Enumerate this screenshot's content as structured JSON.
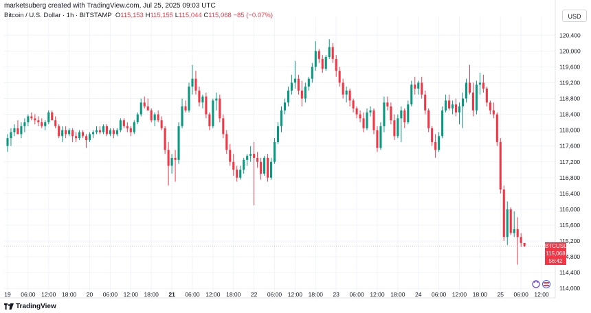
{
  "header": {
    "attribution": "marketsuberg created with TradingView.com, Jul 25, 2025 09:03 UTC",
    "symbol_title": "Bitcoin / U.S. Dollar · 1h · BITSTAMP",
    "ohlc": {
      "open_label": "O",
      "open": "115,153",
      "high_label": "H",
      "high": "115,155",
      "low_label": "L",
      "low": "115,044",
      "close_label": "C",
      "close": "115,068",
      "change": "−85 (−0.07%)"
    },
    "currency_button": "USD"
  },
  "footer": {
    "logo_text": "TradingView"
  },
  "colors": {
    "up": "#089981",
    "down": "#f23645",
    "grid": "#f0f3fa",
    "axis_text": "#131722"
  },
  "chart_data": {
    "type": "candlestick",
    "ylim": [
      113900,
      120700
    ],
    "y_ticks": [
      114000,
      114400,
      114800,
      115200,
      115600,
      116000,
      116400,
      116800,
      117200,
      117600,
      118000,
      118400,
      118800,
      119200,
      119600,
      120000,
      120400
    ],
    "y_tick_labels": [
      "114,000",
      "114,400",
      "114,800",
      "115,200",
      "115,600",
      "116,000",
      "116,400",
      "116,800",
      "117,200",
      "117,600",
      "118,000",
      "118,400",
      "118,800",
      "119,200",
      "119,600",
      "120,000",
      "120,400"
    ],
    "x_ticks": [
      {
        "label": "19",
        "hour": 0,
        "bold": false
      },
      {
        "label": "06:00",
        "hour": 6,
        "bold": false
      },
      {
        "label": "12:00",
        "hour": 12,
        "bold": false
      },
      {
        "label": "18:00",
        "hour": 18,
        "bold": false
      },
      {
        "label": "20",
        "hour": 24,
        "bold": false
      },
      {
        "label": "06:00",
        "hour": 30,
        "bold": false
      },
      {
        "label": "12:00",
        "hour": 36,
        "bold": false
      },
      {
        "label": "18:00",
        "hour": 42,
        "bold": false
      },
      {
        "label": "21",
        "hour": 48,
        "bold": true
      },
      {
        "label": "06:00",
        "hour": 54,
        "bold": false
      },
      {
        "label": "12:00",
        "hour": 60,
        "bold": false
      },
      {
        "label": "18:00",
        "hour": 66,
        "bold": false
      },
      {
        "label": "22",
        "hour": 72,
        "bold": false
      },
      {
        "label": "06:00",
        "hour": 78,
        "bold": false
      },
      {
        "label": "12:00",
        "hour": 84,
        "bold": false
      },
      {
        "label": "18:00",
        "hour": 90,
        "bold": false
      },
      {
        "label": "23",
        "hour": 96,
        "bold": false
      },
      {
        "label": "06:00",
        "hour": 102,
        "bold": false
      },
      {
        "label": "12:00",
        "hour": 108,
        "bold": false
      },
      {
        "label": "18:00",
        "hour": 114,
        "bold": false
      },
      {
        "label": "24",
        "hour": 120,
        "bold": false
      },
      {
        "label": "06:00",
        "hour": 126,
        "bold": false
      },
      {
        "label": "12:00",
        "hour": 132,
        "bold": false
      },
      {
        "label": "18:00",
        "hour": 138,
        "bold": false
      },
      {
        "label": "25",
        "hour": 144,
        "bold": false
      },
      {
        "label": "06:00",
        "hour": 150,
        "bold": false
      },
      {
        "label": "12:00",
        "hour": 156,
        "bold": false
      }
    ],
    "x_range_hours": [
      -1,
      160
    ],
    "last_price": 115068,
    "last_price_tag": {
      "symbol": "BTCUSD",
      "price": "115,068",
      "countdown": "56:42"
    },
    "ohlc": [
      [
        117600,
        117900,
        117450,
        117800
      ],
      [
        117800,
        118050,
        117600,
        117950
      ],
      [
        117950,
        118150,
        117850,
        118050
      ],
      [
        118050,
        118250,
        117900,
        117900
      ],
      [
        117900,
        118200,
        117800,
        118100
      ],
      [
        118100,
        118300,
        117950,
        118200
      ],
      [
        118200,
        118400,
        118100,
        118350
      ],
      [
        118350,
        118450,
        118250,
        118300
      ],
      [
        118300,
        118400,
        118150,
        118250
      ],
      [
        118250,
        118350,
        118100,
        118200
      ],
      [
        118200,
        118300,
        118050,
        118100
      ],
      [
        118100,
        118250,
        118000,
        118200
      ],
      [
        118200,
        118500,
        118150,
        118450
      ],
      [
        118450,
        118500,
        118250,
        118250
      ],
      [
        118250,
        118350,
        118050,
        118100
      ],
      [
        118100,
        118150,
        117800,
        117850
      ],
      [
        117850,
        118100,
        117700,
        118000
      ],
      [
        118000,
        118100,
        117800,
        117900
      ],
      [
        117900,
        118050,
        117850,
        118000
      ],
      [
        118000,
        118050,
        117700,
        117850
      ],
      [
        117850,
        117950,
        117700,
        117800
      ],
      [
        117800,
        118000,
        117750,
        117950
      ],
      [
        117950,
        118000,
        117800,
        117850
      ],
      [
        117850,
        117900,
        117550,
        117750
      ],
      [
        117750,
        117950,
        117700,
        117900
      ],
      [
        117900,
        118000,
        117800,
        117950
      ],
      [
        117950,
        118100,
        117900,
        118000
      ],
      [
        118000,
        118100,
        117900,
        117950
      ],
      [
        117950,
        118150,
        117900,
        118100
      ],
      [
        118100,
        118150,
        117850,
        117900
      ],
      [
        117900,
        118050,
        117850,
        118000
      ],
      [
        118000,
        118050,
        117800,
        117900
      ],
      [
        117900,
        118050,
        117850,
        118000
      ],
      [
        118000,
        118300,
        117950,
        118250
      ],
      [
        118250,
        118300,
        118050,
        118100
      ],
      [
        118100,
        118200,
        117950,
        118050
      ],
      [
        118050,
        118100,
        117850,
        117950
      ],
      [
        117950,
        118250,
        117900,
        118200
      ],
      [
        118200,
        118450,
        118150,
        118400
      ],
      [
        118400,
        118800,
        118350,
        118700
      ],
      [
        118700,
        118850,
        118550,
        118600
      ],
      [
        118600,
        118800,
        118500,
        118500
      ],
      [
        118500,
        118550,
        118200,
        118250
      ],
      [
        118250,
        118450,
        118100,
        118400
      ],
      [
        118400,
        118500,
        118200,
        118250
      ],
      [
        118250,
        118350,
        118000,
        118050
      ],
      [
        118050,
        118100,
        117400,
        117500
      ],
      [
        117500,
        117700,
        116600,
        117100
      ],
      [
        117100,
        117400,
        116900,
        117300
      ],
      [
        117300,
        117500,
        116700,
        117250
      ],
      [
        117250,
        118200,
        117150,
        118100
      ],
      [
        118100,
        118800,
        118050,
        118600
      ],
      [
        118600,
        118750,
        118450,
        118500
      ],
      [
        118500,
        119200,
        118450,
        119100
      ],
      [
        119100,
        119650,
        118900,
        119300
      ],
      [
        119300,
        119500,
        118900,
        119000
      ],
      [
        119000,
        119100,
        118600,
        118700
      ],
      [
        118700,
        118900,
        118550,
        118850
      ],
      [
        118850,
        118950,
        118300,
        118400
      ],
      [
        118400,
        118450,
        118000,
        118100
      ],
      [
        118100,
        118800,
        118050,
        118750
      ],
      [
        118750,
        118950,
        118500,
        118800
      ],
      [
        118800,
        118900,
        118200,
        118300
      ],
      [
        118300,
        118400,
        117800,
        117900
      ],
      [
        117900,
        118000,
        117400,
        117500
      ],
      [
        117500,
        117650,
        117100,
        117200
      ],
      [
        117200,
        117400,
        116850,
        117000
      ],
      [
        117000,
        117100,
        116700,
        116800
      ],
      [
        116800,
        117100,
        116750,
        117000
      ],
      [
        117000,
        117300,
        116900,
        117250
      ],
      [
        117250,
        117400,
        117100,
        117350
      ],
      [
        117350,
        117600,
        117200,
        117400
      ],
      [
        117400,
        117700,
        116100,
        117300
      ],
      [
        117300,
        117450,
        117050,
        117200
      ],
      [
        117200,
        117300,
        116750,
        116900
      ],
      [
        116900,
        117350,
        116850,
        117300
      ],
      [
        117300,
        117400,
        116700,
        116800
      ],
      [
        116800,
        117300,
        116750,
        117200
      ],
      [
        117200,
        117800,
        117150,
        117700
      ],
      [
        117700,
        118200,
        117650,
        118100
      ],
      [
        118100,
        118600,
        117950,
        118500
      ],
      [
        118500,
        118800,
        118400,
        118700
      ],
      [
        118700,
        119100,
        118600,
        119000
      ],
      [
        119000,
        119400,
        118900,
        119200
      ],
      [
        119200,
        119750,
        119050,
        119300
      ],
      [
        119300,
        119400,
        118900,
        119000
      ],
      [
        119000,
        119250,
        118600,
        118800
      ],
      [
        118800,
        119200,
        118700,
        119100
      ],
      [
        119100,
        119350,
        119000,
        119300
      ],
      [
        119300,
        119700,
        119200,
        119600
      ],
      [
        119600,
        120250,
        119500,
        120000
      ],
      [
        120000,
        120050,
        119700,
        119800
      ],
      [
        119800,
        119900,
        119450,
        119550
      ],
      [
        119550,
        119900,
        119500,
        119850
      ],
      [
        119850,
        120300,
        119800,
        120100
      ],
      [
        120100,
        120200,
        119700,
        119800
      ],
      [
        119800,
        119900,
        119350,
        119500
      ],
      [
        119500,
        119600,
        119100,
        119200
      ],
      [
        119200,
        119300,
        118800,
        118900
      ],
      [
        118900,
        119100,
        118700,
        119000
      ],
      [
        119000,
        119050,
        118600,
        118750
      ],
      [
        118750,
        118800,
        118450,
        118550
      ],
      [
        118550,
        118600,
        118300,
        118400
      ],
      [
        118400,
        118500,
        118200,
        118300
      ],
      [
        118300,
        118450,
        117950,
        118050
      ],
      [
        118050,
        118550,
        118000,
        118450
      ],
      [
        118450,
        118600,
        118350,
        118500
      ],
      [
        118500,
        118550,
        117900,
        118000
      ],
      [
        118000,
        118100,
        117450,
        117550
      ],
      [
        117550,
        118200,
        117500,
        118100
      ],
      [
        118100,
        118850,
        117950,
        118700
      ],
      [
        118700,
        118850,
        118500,
        118600
      ],
      [
        118600,
        118700,
        118150,
        118250
      ],
      [
        118250,
        118400,
        117750,
        117850
      ],
      [
        117850,
        118400,
        117800,
        118300
      ],
      [
        118300,
        118600,
        117700,
        118500
      ],
      [
        118500,
        118550,
        118050,
        118200
      ],
      [
        118200,
        118750,
        118150,
        118650
      ],
      [
        118650,
        119250,
        118600,
        119150
      ],
      [
        119150,
        119350,
        118900,
        119050
      ],
      [
        119050,
        119250,
        118900,
        119200
      ],
      [
        119200,
        119350,
        118800,
        118900
      ],
      [
        118900,
        119000,
        118400,
        118500
      ],
      [
        118500,
        118550,
        117950,
        118050
      ],
      [
        118050,
        118100,
        117600,
        117700
      ],
      [
        117700,
        117900,
        117300,
        117500
      ],
      [
        117500,
        117950,
        117450,
        117850
      ],
      [
        117850,
        118600,
        117800,
        118500
      ],
      [
        118500,
        118900,
        118450,
        118750
      ],
      [
        118750,
        118900,
        118500,
        118550
      ],
      [
        118550,
        118750,
        118400,
        118650
      ],
      [
        118650,
        118800,
        118350,
        118450
      ],
      [
        118450,
        118700,
        118150,
        118600
      ],
      [
        118600,
        118950,
        118050,
        118800
      ],
      [
        118800,
        119300,
        118700,
        119200
      ],
      [
        119200,
        119650,
        118900,
        118950
      ],
      [
        118950,
        119200,
        118350,
        118500
      ],
      [
        118500,
        119250,
        118400,
        119150
      ],
      [
        119150,
        119450,
        118900,
        119200
      ],
      [
        119200,
        119400,
        118950,
        119050
      ],
      [
        119050,
        119100,
        118600,
        118700
      ],
      [
        118700,
        118750,
        118400,
        118500
      ],
      [
        118500,
        118700,
        118300,
        118400
      ],
      [
        118400,
        118450,
        117600,
        117700
      ],
      [
        117700,
        117800,
        116400,
        116500
      ],
      [
        116500,
        116600,
        115200,
        115300
      ],
      [
        115300,
        116200,
        115100,
        116000
      ],
      [
        116000,
        116050,
        115350,
        115400
      ],
      [
        115400,
        115950,
        115300,
        115500
      ],
      [
        115500,
        115800,
        114600,
        115300
      ],
      [
        115300,
        115400,
        115050,
        115150
      ],
      [
        115150,
        115155,
        115044,
        115068
      ]
    ]
  }
}
